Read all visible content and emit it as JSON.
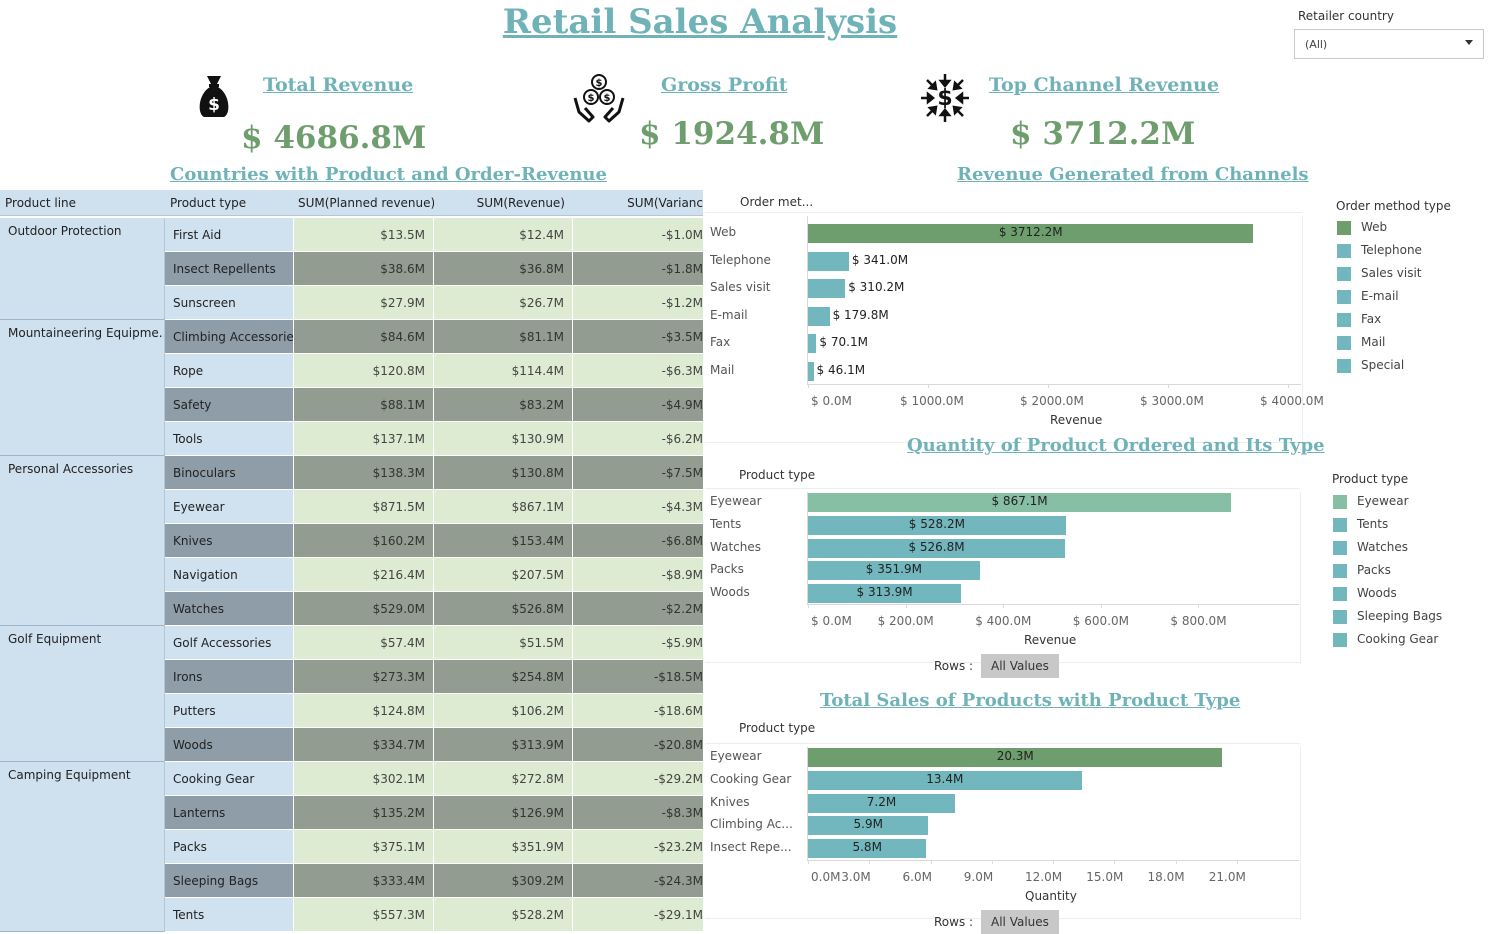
{
  "title": "Retail Sales Analysis",
  "filter": {
    "label": "Retailer country",
    "value": "(All)"
  },
  "kpis": [
    {
      "title": "Total Revenue",
      "value": "$ 4686.8M",
      "icon": "money-bag-icon"
    },
    {
      "title": "Gross Profit",
      "value": "$ 1924.8M",
      "icon": "hands-coins-icon"
    },
    {
      "title": "Top Channel Revenue ",
      "value": "$ 3712.2M",
      "icon": "dollar-arrows-icon"
    }
  ],
  "table": {
    "title": "Countries with Product and Order-Revenue",
    "headers": [
      "Product line",
      "Product type",
      "SUM(Planned revenue)",
      "SUM(Revenue)",
      "SUM(Varianc"
    ],
    "groups": [
      {
        "line": "Outdoor Protection",
        "rows": [
          [
            "First Aid",
            "$13.5M",
            "$12.4M",
            "-$1.0M"
          ],
          [
            "Insect Repellents",
            "$38.6M",
            "$36.8M",
            "-$1.8M"
          ],
          [
            "Sunscreen",
            "$27.9M",
            "$26.7M",
            "-$1.2M"
          ]
        ]
      },
      {
        "line": "Mountaineering Equipme...",
        "rows": [
          [
            "Climbing Accessories",
            "$84.6M",
            "$81.1M",
            "-$3.5M"
          ],
          [
            "Rope",
            "$120.8M",
            "$114.4M",
            "-$6.3M"
          ],
          [
            "Safety",
            "$88.1M",
            "$83.2M",
            "-$4.9M"
          ],
          [
            "Tools",
            "$137.1M",
            "$130.9M",
            "-$6.2M"
          ]
        ]
      },
      {
        "line": "Personal Accessories",
        "rows": [
          [
            "Binoculars",
            "$138.3M",
            "$130.8M",
            "-$7.5M"
          ],
          [
            "Eyewear",
            "$871.5M",
            "$867.1M",
            "-$4.3M"
          ],
          [
            "Knives",
            "$160.2M",
            "$153.4M",
            "-$6.8M"
          ],
          [
            "Navigation",
            "$216.4M",
            "$207.5M",
            "-$8.9M"
          ],
          [
            "Watches",
            "$529.0M",
            "$526.8M",
            "-$2.2M"
          ]
        ]
      },
      {
        "line": "Golf Equipment",
        "rows": [
          [
            "Golf Accessories",
            "$57.4M",
            "$51.5M",
            "-$5.9M"
          ],
          [
            "Irons",
            "$273.3M",
            "$254.8M",
            "-$18.5M"
          ],
          [
            "Putters",
            "$124.8M",
            "$106.2M",
            "-$18.6M"
          ],
          [
            "Woods",
            "$334.7M",
            "$313.9M",
            "-$20.8M"
          ]
        ]
      },
      {
        "line": "Camping Equipment",
        "rows": [
          [
            "Cooking Gear",
            "$302.1M",
            "$272.8M",
            "-$29.2M"
          ],
          [
            "Lanterns",
            "$135.2M",
            "$126.9M",
            "-$8.3M"
          ],
          [
            "Packs",
            "$375.1M",
            "$351.9M",
            "-$23.2M"
          ],
          [
            "Sleeping Bags",
            "$333.4M",
            "$309.2M",
            "-$24.3M"
          ],
          [
            "Tents",
            "$557.3M",
            "$528.2M",
            "-$29.1M"
          ]
        ]
      }
    ]
  },
  "chart_data": [
    {
      "type": "bar",
      "title": "Revenue Generated from Channels",
      "row_header": "Order met...",
      "xlabel": "Revenue",
      "categories": [
        "Web",
        "Telephone",
        "Sales visit",
        "E-mail",
        "Fax",
        "Mail"
      ],
      "values": [
        3712.2,
        341.0,
        310.2,
        179.8,
        70.1,
        46.1
      ],
      "labels": [
        "$ 3712.2M",
        "$ 341.0M",
        "$ 310.2M",
        "$ 179.8M",
        "$ 70.1M",
        "$ 46.1M"
      ],
      "xlim": [
        0,
        4500
      ],
      "ticks": [
        0,
        1000,
        2000,
        3000,
        4000
      ],
      "tick_labels": [
        "$ 0.0M",
        "$ 1000.0M",
        "$ 2000.0M",
        "$ 3000.0M",
        "$ 4000.0M"
      ],
      "legend_title": "Order method type",
      "legend": [
        "Web",
        "Telephone",
        "Sales visit",
        "E-mail",
        "Fax",
        "Mail",
        "Special"
      ]
    },
    {
      "type": "bar",
      "title": "Quantity of Product Ordered and Its Type",
      "row_header": "Product type",
      "xlabel": "Revenue",
      "categories": [
        "Eyewear",
        "Tents",
        "Watches",
        "Packs",
        "Woods"
      ],
      "values": [
        867.1,
        528.2,
        526.8,
        351.9,
        313.9
      ],
      "labels": [
        "$ 867.1M",
        "$ 528.2M",
        "$ 526.8M",
        "$ 351.9M",
        "$ 313.9M"
      ],
      "xlim": [
        0,
        1000
      ],
      "ticks": [
        0,
        200,
        400,
        600,
        800
      ],
      "tick_labels": [
        "$ 0.0M",
        "$ 200.0M",
        "$ 400.0M",
        "$ 600.0M",
        "$ 800.0M"
      ],
      "legend_title": "Product type",
      "legend": [
        "Eyewear",
        "Tents",
        "Watches",
        "Packs",
        "Woods",
        "Sleeping Bags",
        "Cooking Gear"
      ],
      "rows_label": "Rows :",
      "rows_value": "All Values"
    },
    {
      "type": "bar",
      "title": "Total Sales of Products with Product Type",
      "row_header": "Product type",
      "xlabel": "Quantity",
      "categories": [
        "Eyewear",
        "Cooking Gear",
        "Knives",
        "Climbing Ac...",
        "Insect Repe..."
      ],
      "values": [
        20.3,
        13.4,
        7.2,
        5.9,
        5.8
      ],
      "labels": [
        "20.3M",
        "13.4M",
        "7.2M",
        "5.9M",
        "5.8M"
      ],
      "xlim": [
        0,
        24
      ],
      "ticks": [
        0,
        3,
        6,
        9,
        12,
        15,
        18,
        21
      ],
      "tick_labels": [
        "0.0M",
        "3.0M",
        "6.0M",
        "9.0M",
        "12.0M",
        "15.0M",
        "18.0M",
        "21.0M"
      ],
      "rows_label": "Rows :",
      "rows_value": "All Values"
    }
  ],
  "colors": {
    "green": "#6e9e6e",
    "teal": "#72b7bd",
    "mint": "#86bfa3",
    "title": "#6fb2b8"
  }
}
